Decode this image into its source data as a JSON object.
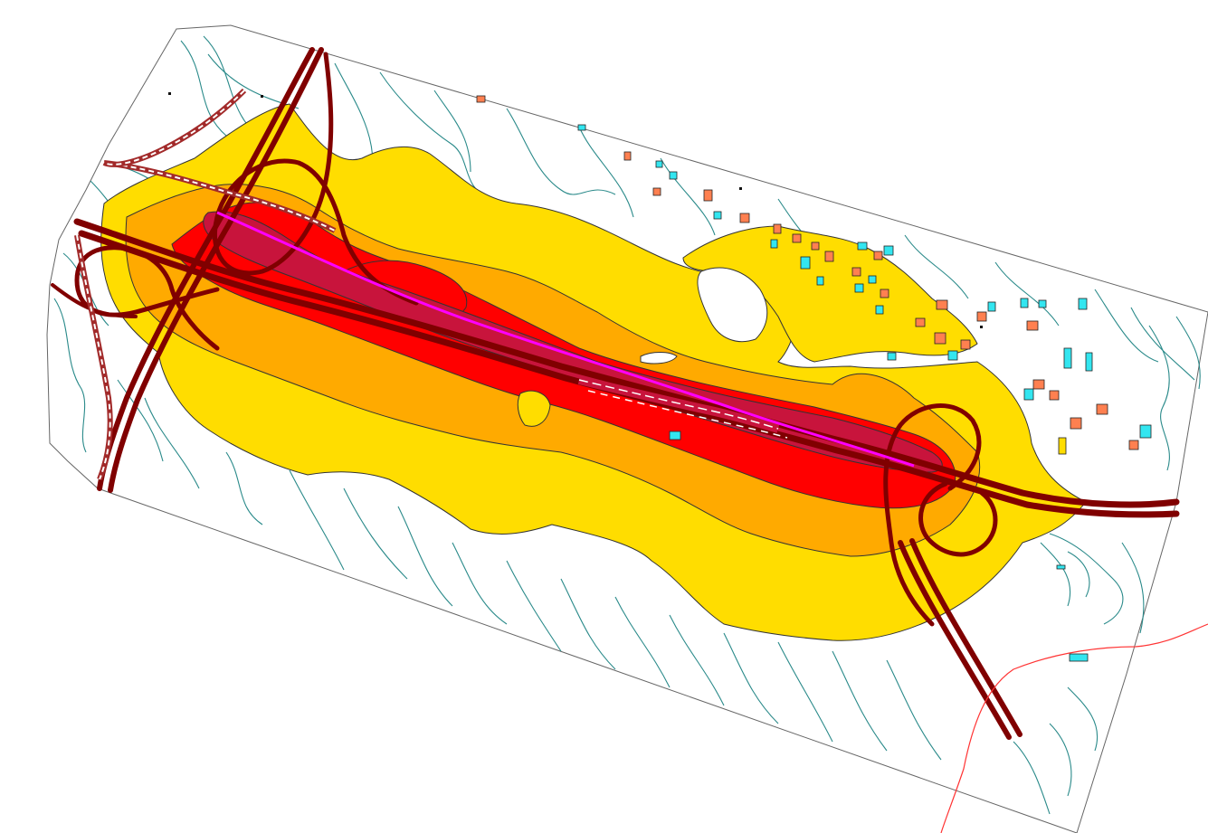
{
  "map": {
    "kind": "noise contour map",
    "zones": [
      {
        "name": "outer-zone",
        "color": "#FFDD00"
      },
      {
        "name": "mid-zone",
        "color": "#FFAA00"
      },
      {
        "name": "inner-zone",
        "color": "#FF0000"
      },
      {
        "name": "core-zone",
        "color": "#C8143C"
      }
    ],
    "colors": {
      "boundary": "#666666",
      "road": "#800000",
      "contour": "#2A8A8A",
      "center_line": "#FF00FF",
      "building_a": "#FF8050",
      "building_b": "#33E6F0",
      "external_line": "#FF3333"
    }
  }
}
